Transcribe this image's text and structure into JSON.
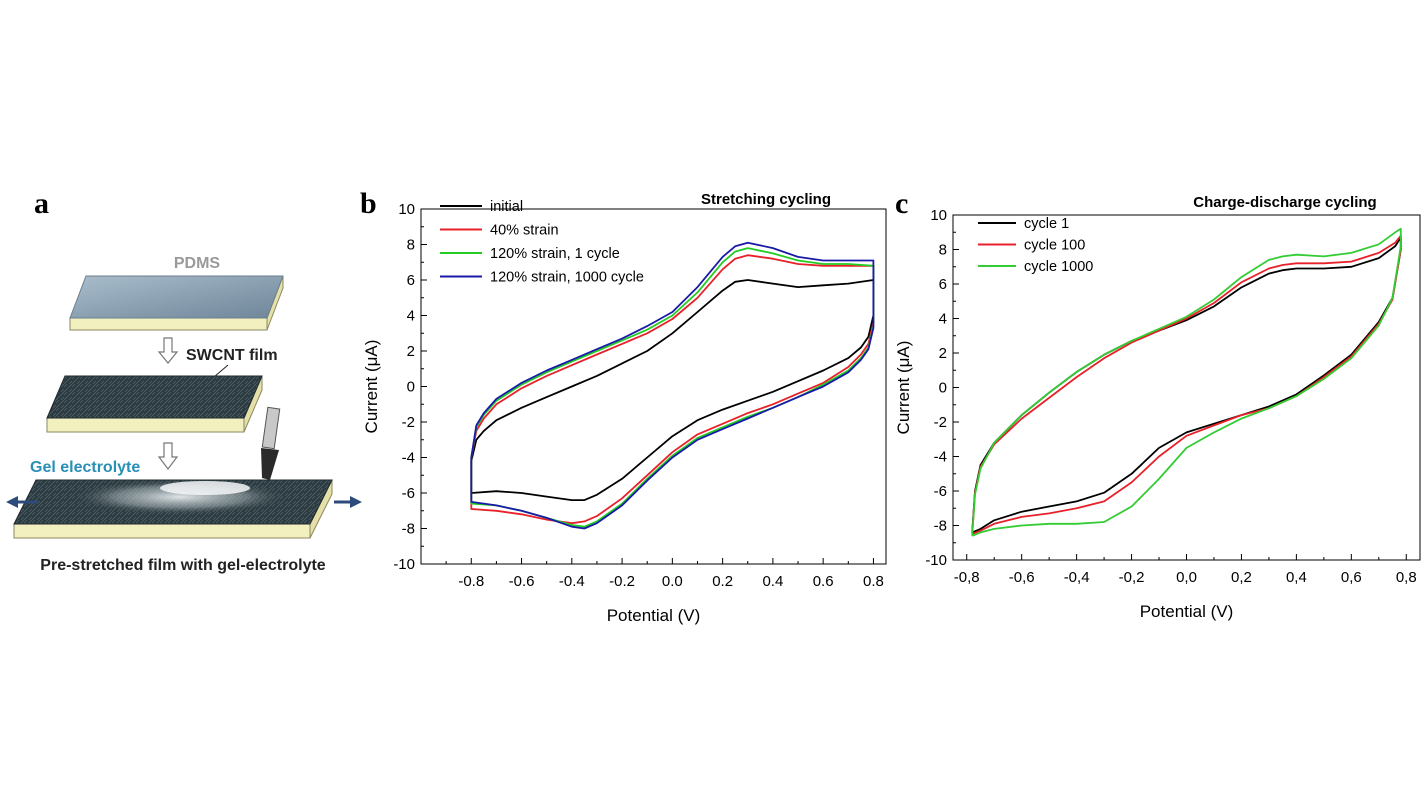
{
  "panel_a": {
    "letter": "a",
    "pdms_label": "PDMS",
    "swcnt_label": "SWCNT film",
    "gel_label": "Gel electrolyte",
    "caption": "Pre-stretched film with gel-electrolyte",
    "colors": {
      "pdms_label": "#9a9a9a",
      "gel_label": "#2a8fb5",
      "edge": "#f3f0c0",
      "arrow": "#2c4a7c"
    }
  },
  "chart_data": [
    {
      "panel": "b",
      "type": "line",
      "title": "Stretching cycling",
      "xlabel": "Potential (V)",
      "ylabel": "Current (μA)",
      "xlim": [
        -1.0,
        0.85
      ],
      "ylim": [
        -10,
        10
      ],
      "xticks": [
        -0.8,
        -0.6,
        -0.4,
        -0.2,
        0.0,
        0.2,
        0.4,
        0.6,
        0.8
      ],
      "xtick_labels": [
        "-0.8",
        "-0.6",
        "-0.4",
        "-0.2",
        "0.0",
        "0.2",
        "0.4",
        "0.6",
        "0.8"
      ],
      "yticks": [
        -10,
        -8,
        -6,
        -4,
        -2,
        0,
        2,
        4,
        6,
        8,
        10
      ],
      "ytick_labels": [
        "-10",
        "-8",
        "-6",
        "-4",
        "-2",
        "0",
        "2",
        "4",
        "6",
        "8",
        "10"
      ],
      "legend_position": "top-left",
      "series": [
        {
          "name": "initial",
          "color": "#000000",
          "x": [
            -0.8,
            -0.78,
            -0.75,
            -0.7,
            -0.6,
            -0.5,
            -0.4,
            -0.3,
            -0.2,
            -0.1,
            0.0,
            0.1,
            0.2,
            0.25,
            0.3,
            0.4,
            0.5,
            0.6,
            0.7,
            0.8,
            0.8,
            0.78,
            0.75,
            0.7,
            0.6,
            0.5,
            0.4,
            0.3,
            0.2,
            0.1,
            0.0,
            -0.1,
            -0.2,
            -0.3,
            -0.35,
            -0.4,
            -0.5,
            -0.6,
            -0.7,
            -0.8,
            -0.8
          ],
          "y": [
            -4.2,
            -3.0,
            -2.5,
            -1.9,
            -1.2,
            -0.6,
            0.0,
            0.6,
            1.3,
            2.0,
            3.0,
            4.2,
            5.4,
            5.9,
            6.0,
            5.8,
            5.6,
            5.7,
            5.8,
            6.0,
            4.0,
            2.8,
            2.2,
            1.6,
            0.9,
            0.3,
            -0.3,
            -0.8,
            -1.3,
            -1.9,
            -2.8,
            -4.0,
            -5.2,
            -6.1,
            -6.4,
            -6.4,
            -6.2,
            -6.0,
            -5.9,
            -6.0,
            -4.2
          ]
        },
        {
          "name": "40% strain",
          "color": "#e8202a",
          "x": [
            -0.8,
            -0.78,
            -0.75,
            -0.7,
            -0.6,
            -0.5,
            -0.4,
            -0.3,
            -0.2,
            -0.1,
            0.0,
            0.1,
            0.2,
            0.25,
            0.3,
            0.4,
            0.5,
            0.6,
            0.7,
            0.8,
            0.8,
            0.78,
            0.75,
            0.7,
            0.6,
            0.5,
            0.4,
            0.3,
            0.2,
            0.1,
            0.0,
            -0.1,
            -0.2,
            -0.3,
            -0.35,
            -0.4,
            -0.5,
            -0.6,
            -0.7,
            -0.8,
            -0.8
          ],
          "y": [
            -4.0,
            -2.5,
            -1.8,
            -1.0,
            -0.1,
            0.6,
            1.2,
            1.8,
            2.4,
            3.0,
            3.8,
            5.0,
            6.6,
            7.2,
            7.4,
            7.2,
            6.9,
            6.8,
            6.8,
            6.8,
            3.6,
            2.4,
            1.8,
            1.1,
            0.2,
            -0.4,
            -1.0,
            -1.5,
            -2.1,
            -2.7,
            -3.7,
            -5.0,
            -6.3,
            -7.3,
            -7.6,
            -7.7,
            -7.5,
            -7.2,
            -7.0,
            -6.9,
            -4.0
          ]
        },
        {
          "name": "120% strain, 1 cycle",
          "color": "#22cc22",
          "x": [
            -0.8,
            -0.78,
            -0.75,
            -0.7,
            -0.6,
            -0.5,
            -0.4,
            -0.3,
            -0.2,
            -0.1,
            0.0,
            0.1,
            0.2,
            0.25,
            0.3,
            0.4,
            0.5,
            0.6,
            0.7,
            0.8,
            0.8,
            0.78,
            0.75,
            0.7,
            0.6,
            0.5,
            0.4,
            0.3,
            0.2,
            0.1,
            0.0,
            -0.1,
            -0.2,
            -0.3,
            -0.35,
            -0.4,
            -0.5,
            -0.6,
            -0.7,
            -0.8,
            -0.8
          ],
          "y": [
            -4.0,
            -2.3,
            -1.6,
            -0.8,
            0.1,
            0.8,
            1.4,
            2.0,
            2.6,
            3.2,
            4.0,
            5.3,
            7.0,
            7.6,
            7.8,
            7.5,
            7.1,
            6.9,
            6.9,
            6.8,
            3.4,
            2.2,
            1.6,
            0.9,
            0.1,
            -0.6,
            -1.2,
            -1.7,
            -2.3,
            -2.9,
            -3.9,
            -5.2,
            -6.6,
            -7.6,
            -7.9,
            -7.8,
            -7.4,
            -7.0,
            -6.7,
            -6.6,
            -4.0
          ]
        },
        {
          "name": "120% strain, 1000 cycle",
          "color": "#1a1aa8",
          "x": [
            -0.8,
            -0.78,
            -0.75,
            -0.7,
            -0.6,
            -0.5,
            -0.4,
            -0.3,
            -0.2,
            -0.1,
            0.0,
            0.1,
            0.2,
            0.25,
            0.3,
            0.4,
            0.5,
            0.6,
            0.7,
            0.8,
            0.8,
            0.78,
            0.75,
            0.7,
            0.6,
            0.5,
            0.4,
            0.3,
            0.2,
            0.1,
            0.0,
            -0.1,
            -0.2,
            -0.3,
            -0.35,
            -0.4,
            -0.5,
            -0.6,
            -0.7,
            -0.8,
            -0.8
          ],
          "y": [
            -4.0,
            -2.2,
            -1.5,
            -0.7,
            0.2,
            0.9,
            1.5,
            2.1,
            2.7,
            3.4,
            4.2,
            5.6,
            7.3,
            7.9,
            8.1,
            7.8,
            7.3,
            7.1,
            7.1,
            7.1,
            3.3,
            2.1,
            1.5,
            0.8,
            0.0,
            -0.6,
            -1.2,
            -1.8,
            -2.4,
            -3.0,
            -4.0,
            -5.3,
            -6.7,
            -7.7,
            -8.0,
            -7.9,
            -7.4,
            -7.0,
            -6.7,
            -6.5,
            -4.0
          ]
        }
      ]
    },
    {
      "panel": "c",
      "type": "line",
      "title": "Charge-discharge cycling",
      "xlabel": "Potential (V)",
      "ylabel": "Current (μA)",
      "xlim": [
        -0.85,
        0.85
      ],
      "ylim": [
        -10,
        10
      ],
      "xticks": [
        -0.8,
        -0.6,
        -0.4,
        -0.2,
        0.0,
        0.2,
        0.4,
        0.6,
        0.8
      ],
      "xtick_labels": [
        "-0,8",
        "-0,6",
        "-0,4",
        "-0,2",
        "0,0",
        "0,2",
        "0,4",
        "0,6",
        "0,8"
      ],
      "yticks": [
        -10,
        -8,
        -6,
        -4,
        -2,
        0,
        2,
        4,
        6,
        8,
        10
      ],
      "ytick_labels": [
        "-10",
        "-8",
        "-6",
        "-4",
        "-2",
        "0",
        "2",
        "4",
        "6",
        "8",
        "10"
      ],
      "legend_position": "top-left",
      "series": [
        {
          "name": "cycle 1",
          "color": "#000000",
          "x": [
            -0.78,
            -0.77,
            -0.75,
            -0.7,
            -0.6,
            -0.5,
            -0.4,
            -0.3,
            -0.2,
            -0.1,
            0.0,
            0.1,
            0.2,
            0.3,
            0.35,
            0.4,
            0.5,
            0.6,
            0.7,
            0.76,
            0.78,
            0.78,
            0.75,
            0.7,
            0.6,
            0.5,
            0.4,
            0.3,
            0.2,
            0.1,
            0.0,
            -0.1,
            -0.2,
            -0.3,
            -0.4,
            -0.5,
            -0.6,
            -0.7,
            -0.75,
            -0.78
          ],
          "y": [
            -8.4,
            -6.0,
            -4.5,
            -3.2,
            -1.6,
            -0.3,
            0.9,
            1.9,
            2.7,
            3.3,
            3.9,
            4.7,
            5.8,
            6.6,
            6.8,
            6.9,
            6.9,
            7.0,
            7.5,
            8.2,
            8.7,
            8.0,
            5.2,
            3.8,
            1.9,
            0.7,
            -0.4,
            -1.1,
            -1.6,
            -2.1,
            -2.6,
            -3.5,
            -5.0,
            -6.1,
            -6.6,
            -6.9,
            -7.2,
            -7.7,
            -8.2,
            -8.4
          ]
        },
        {
          "name": "cycle 100",
          "color": "#e8202a",
          "x": [
            -0.78,
            -0.77,
            -0.75,
            -0.7,
            -0.6,
            -0.5,
            -0.4,
            -0.3,
            -0.2,
            -0.1,
            0.0,
            0.1,
            0.2,
            0.3,
            0.35,
            0.4,
            0.5,
            0.6,
            0.7,
            0.76,
            0.78,
            0.78,
            0.75,
            0.7,
            0.6,
            0.5,
            0.4,
            0.3,
            0.2,
            0.1,
            0.0,
            -0.1,
            -0.2,
            -0.3,
            -0.4,
            -0.5,
            -0.6,
            -0.7,
            -0.75,
            -0.78
          ],
          "y": [
            -8.5,
            -6.1,
            -4.6,
            -3.3,
            -1.8,
            -0.6,
            0.6,
            1.7,
            2.6,
            3.3,
            4.0,
            4.9,
            6.1,
            6.9,
            7.1,
            7.2,
            7.2,
            7.3,
            7.8,
            8.4,
            8.8,
            8.0,
            5.1,
            3.7,
            1.8,
            0.6,
            -0.5,
            -1.2,
            -1.6,
            -2.2,
            -2.8,
            -4.0,
            -5.5,
            -6.6,
            -7.0,
            -7.3,
            -7.5,
            -7.9,
            -8.3,
            -8.5
          ]
        },
        {
          "name": "cycle 1000",
          "color": "#33cc33",
          "x": [
            -0.78,
            -0.77,
            -0.75,
            -0.7,
            -0.6,
            -0.5,
            -0.4,
            -0.3,
            -0.2,
            -0.1,
            0.0,
            0.1,
            0.2,
            0.3,
            0.35,
            0.4,
            0.5,
            0.6,
            0.7,
            0.76,
            0.78,
            0.78,
            0.75,
            0.7,
            0.6,
            0.5,
            0.4,
            0.3,
            0.2,
            0.1,
            0.0,
            -0.1,
            -0.2,
            -0.3,
            -0.4,
            -0.5,
            -0.6,
            -0.7,
            -0.75,
            -0.78
          ],
          "y": [
            -8.6,
            -6.2,
            -4.7,
            -3.2,
            -1.6,
            -0.3,
            0.9,
            1.9,
            2.7,
            3.4,
            4.1,
            5.1,
            6.4,
            7.4,
            7.6,
            7.7,
            7.6,
            7.8,
            8.3,
            9.0,
            9.2,
            8.2,
            5.2,
            3.6,
            1.7,
            0.5,
            -0.5,
            -1.2,
            -1.8,
            -2.6,
            -3.5,
            -5.3,
            -6.9,
            -7.8,
            -7.9,
            -7.9,
            -8.0,
            -8.2,
            -8.4,
            -8.6
          ]
        }
      ]
    }
  ]
}
